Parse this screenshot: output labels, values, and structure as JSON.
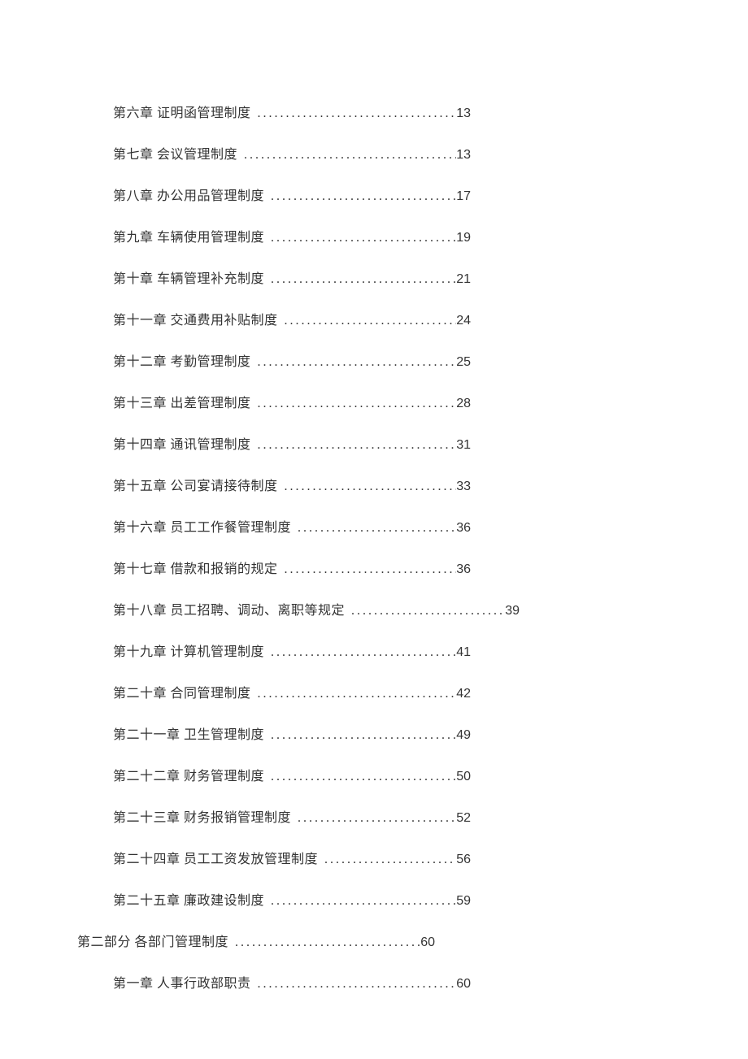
{
  "text_color": "#333333",
  "background_color": "#ffffff",
  "font_size_pt": 12,
  "entries": [
    {
      "level": 2,
      "label": "第六章 证明函管理制度",
      "page": "13",
      "wide": false
    },
    {
      "level": 2,
      "label": "第七章 会议管理制度",
      "page": "13",
      "wide": false
    },
    {
      "level": 2,
      "label": "第八章 办公用品管理制度",
      "page": "17",
      "wide": false
    },
    {
      "level": 2,
      "label": "第九章 车辆使用管理制度",
      "page": "19",
      "wide": false
    },
    {
      "level": 2,
      "label": "第十章 车辆管理补充制度",
      "page": "21",
      "wide": false
    },
    {
      "level": 2,
      "label": "第十一章 交通费用补贴制度",
      "page": "24",
      "wide": false
    },
    {
      "level": 2,
      "label": "第十二章 考勤管理制度",
      "page": "25",
      "wide": false
    },
    {
      "level": 2,
      "label": "第十三章 出差管理制度",
      "page": "28",
      "wide": false
    },
    {
      "level": 2,
      "label": "第十四章 通讯管理制度",
      "page": "31",
      "wide": false
    },
    {
      "level": 2,
      "label": "第十五章 公司宴请接待制度",
      "page": "33",
      "wide": false
    },
    {
      "level": 2,
      "label": "第十六章 员工工作餐管理制度",
      "page": "36",
      "wide": false
    },
    {
      "level": 2,
      "label": "第十七章 借款和报销的规定",
      "page": "36",
      "wide": false
    },
    {
      "level": 2,
      "label": "第十八章 员工招聘、调动、离职等规定",
      "page": "39",
      "wide": true
    },
    {
      "level": 2,
      "label": "第十九章 计算机管理制度",
      "page": "41",
      "wide": false
    },
    {
      "level": 2,
      "label": "第二十章 合同管理制度",
      "page": "42",
      "wide": false
    },
    {
      "level": 2,
      "label": "第二十一章 卫生管理制度",
      "page": "49",
      "wide": false
    },
    {
      "level": 2,
      "label": "第二十二章 财务管理制度",
      "page": "50",
      "wide": false
    },
    {
      "level": 2,
      "label": "第二十三章 财务报销管理制度",
      "page": "52",
      "wide": false
    },
    {
      "level": 2,
      "label": "第二十四章 员工工资发放管理制度",
      "page": "56",
      "wide": false
    },
    {
      "level": 2,
      "label": "第二十五章 廉政建设制度",
      "page": "59",
      "wide": false
    },
    {
      "level": 1,
      "label": "第二部分 各部门管理制度",
      "page": "60",
      "wide": false
    },
    {
      "level": 2,
      "label": "第一章 人事行政部职责",
      "page": "60",
      "wide": false
    }
  ]
}
